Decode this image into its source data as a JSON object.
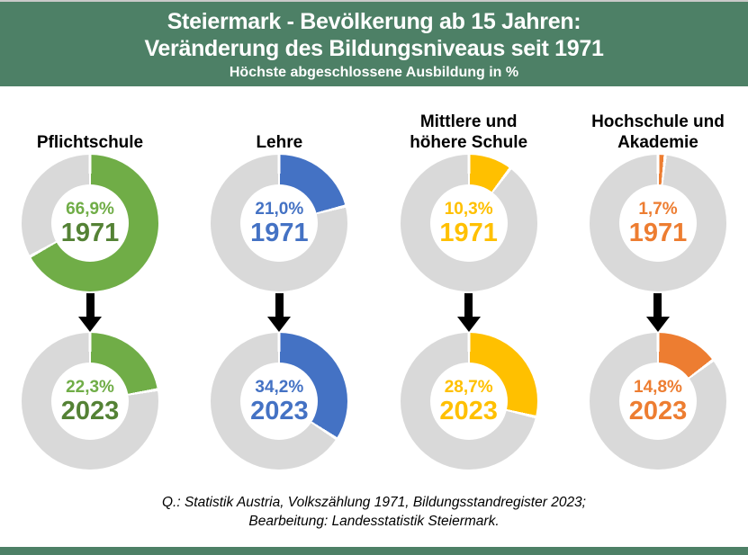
{
  "header": {
    "title_line1": "Steiermark - Bevölkerung ab 15 Jahren:",
    "title_line2": "Veränderung des Bildungsniveaus seit 1971",
    "subtitle": "Höchste abgeschlossene Ausbildung in %",
    "bg_color": "#4d8066",
    "text_color": "#ffffff"
  },
  "chart_data": {
    "type": "pie",
    "variant": "donut",
    "title": "Steiermark - Bevölkerung ab 15 Jahren: Veränderung des Bildungsniveaus seit 1971",
    "subtitle": "Höchste abgeschlossene Ausbildung in %",
    "unit": "%",
    "years": [
      "1971",
      "2023"
    ],
    "categories": [
      "Pflichtschule",
      "Lehre",
      "Mittlere und höhere Schule",
      "Hochschule und Akademie"
    ],
    "series": [
      {
        "name": "Pflichtschule",
        "values": {
          "1971": 66.9,
          "2023": 22.3
        }
      },
      {
        "name": "Lehre",
        "values": {
          "1971": 21.0,
          "2023": 34.2
        }
      },
      {
        "name": "Mittlere und höhere Schule",
        "values": {
          "1971": 10.3,
          "2023": 28.7
        }
      },
      {
        "name": "Hochschule und Akademie",
        "values": {
          "1971": 1.7,
          "2023": 14.8
        }
      }
    ],
    "remainder_color": "#d9d9d9",
    "legend_position": "none",
    "grid": false
  },
  "columns": [
    {
      "title_line1": "Pflichtschule",
      "title_line2": "",
      "color": "#70ad47",
      "year_color": "#548235",
      "donuts": [
        {
          "pct_label": "66,9%",
          "year": "1971",
          "value": 66.9
        },
        {
          "pct_label": "22,3%",
          "year": "2023",
          "value": 22.3
        }
      ]
    },
    {
      "title_line1": "Lehre",
      "title_line2": "",
      "color": "#4472c4",
      "year_color": "#4472c4",
      "donuts": [
        {
          "pct_label": "21,0%",
          "year": "1971",
          "value": 21.0
        },
        {
          "pct_label": "34,2%",
          "year": "2023",
          "value": 34.2
        }
      ]
    },
    {
      "title_line1": "Mittlere und",
      "title_line2": "höhere Schule",
      "color": "#ffc000",
      "year_color": "#ffc000",
      "donuts": [
        {
          "pct_label": "10,3%",
          "year": "1971",
          "value": 10.3
        },
        {
          "pct_label": "28,7%",
          "year": "2023",
          "value": 28.7
        }
      ]
    },
    {
      "title_line1": "Hochschule und",
      "title_line2": "Akademie",
      "color": "#ed7d31",
      "year_color": "#ed7d31",
      "donuts": [
        {
          "pct_label": "1,7%",
          "year": "1971",
          "value": 1.7
        },
        {
          "pct_label": "14,8%",
          "year": "2023",
          "value": 14.8
        }
      ]
    }
  ],
  "footer": {
    "source_line1": "Q.: Statistik Austria, Volkszählung 1971, Bildungsstandregister 2023;",
    "source_line2": "Bearbeitung: Landesstatistik Steiermark.",
    "bar_color": "#4d8066"
  }
}
